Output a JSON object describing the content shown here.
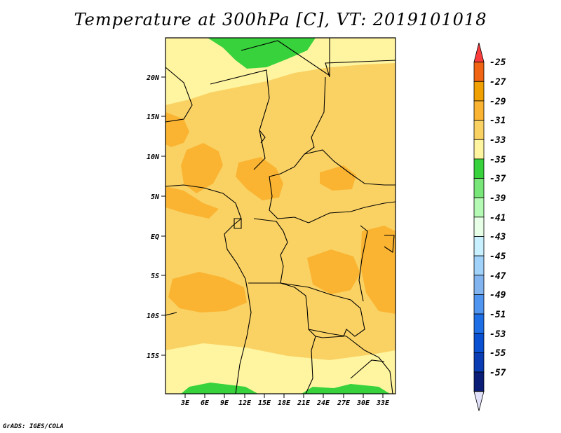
{
  "title": "Temperature at 300hPa [C], VT: 2019101018",
  "footer": "GrADS: IGES/COLA",
  "latitude_labels": [
    "20N",
    "15N",
    "10N",
    "5N",
    "EQ",
    "5S",
    "10S",
    "15S"
  ],
  "longitude_labels": [
    "3E",
    "6E",
    "9E",
    "12E",
    "15E",
    "18E",
    "21E",
    "24E",
    "27E",
    "30E",
    "33E"
  ],
  "colorbar": {
    "labels": [
      "-25",
      "-27",
      "-29",
      "-31",
      "-33",
      "-35",
      "-37",
      "-39",
      "-41",
      "-43",
      "-45",
      "-47",
      "-49",
      "-51",
      "-53",
      "-55",
      "-57"
    ],
    "colors": [
      "#fa3c3c",
      "#f06414",
      "#f0a000",
      "#fab432",
      "#fad264",
      "#fff5a0",
      "#37d23c",
      "#78e678",
      "#b4fab4",
      "#e6ffe6",
      "#c8f0ff",
      "#a0d2fa",
      "#82b4f0",
      "#5096f0",
      "#1e6ee6",
      "#0a50d2",
      "#0a3cb4",
      "#0a1e78",
      "#e1e1fa"
    ]
  }
}
